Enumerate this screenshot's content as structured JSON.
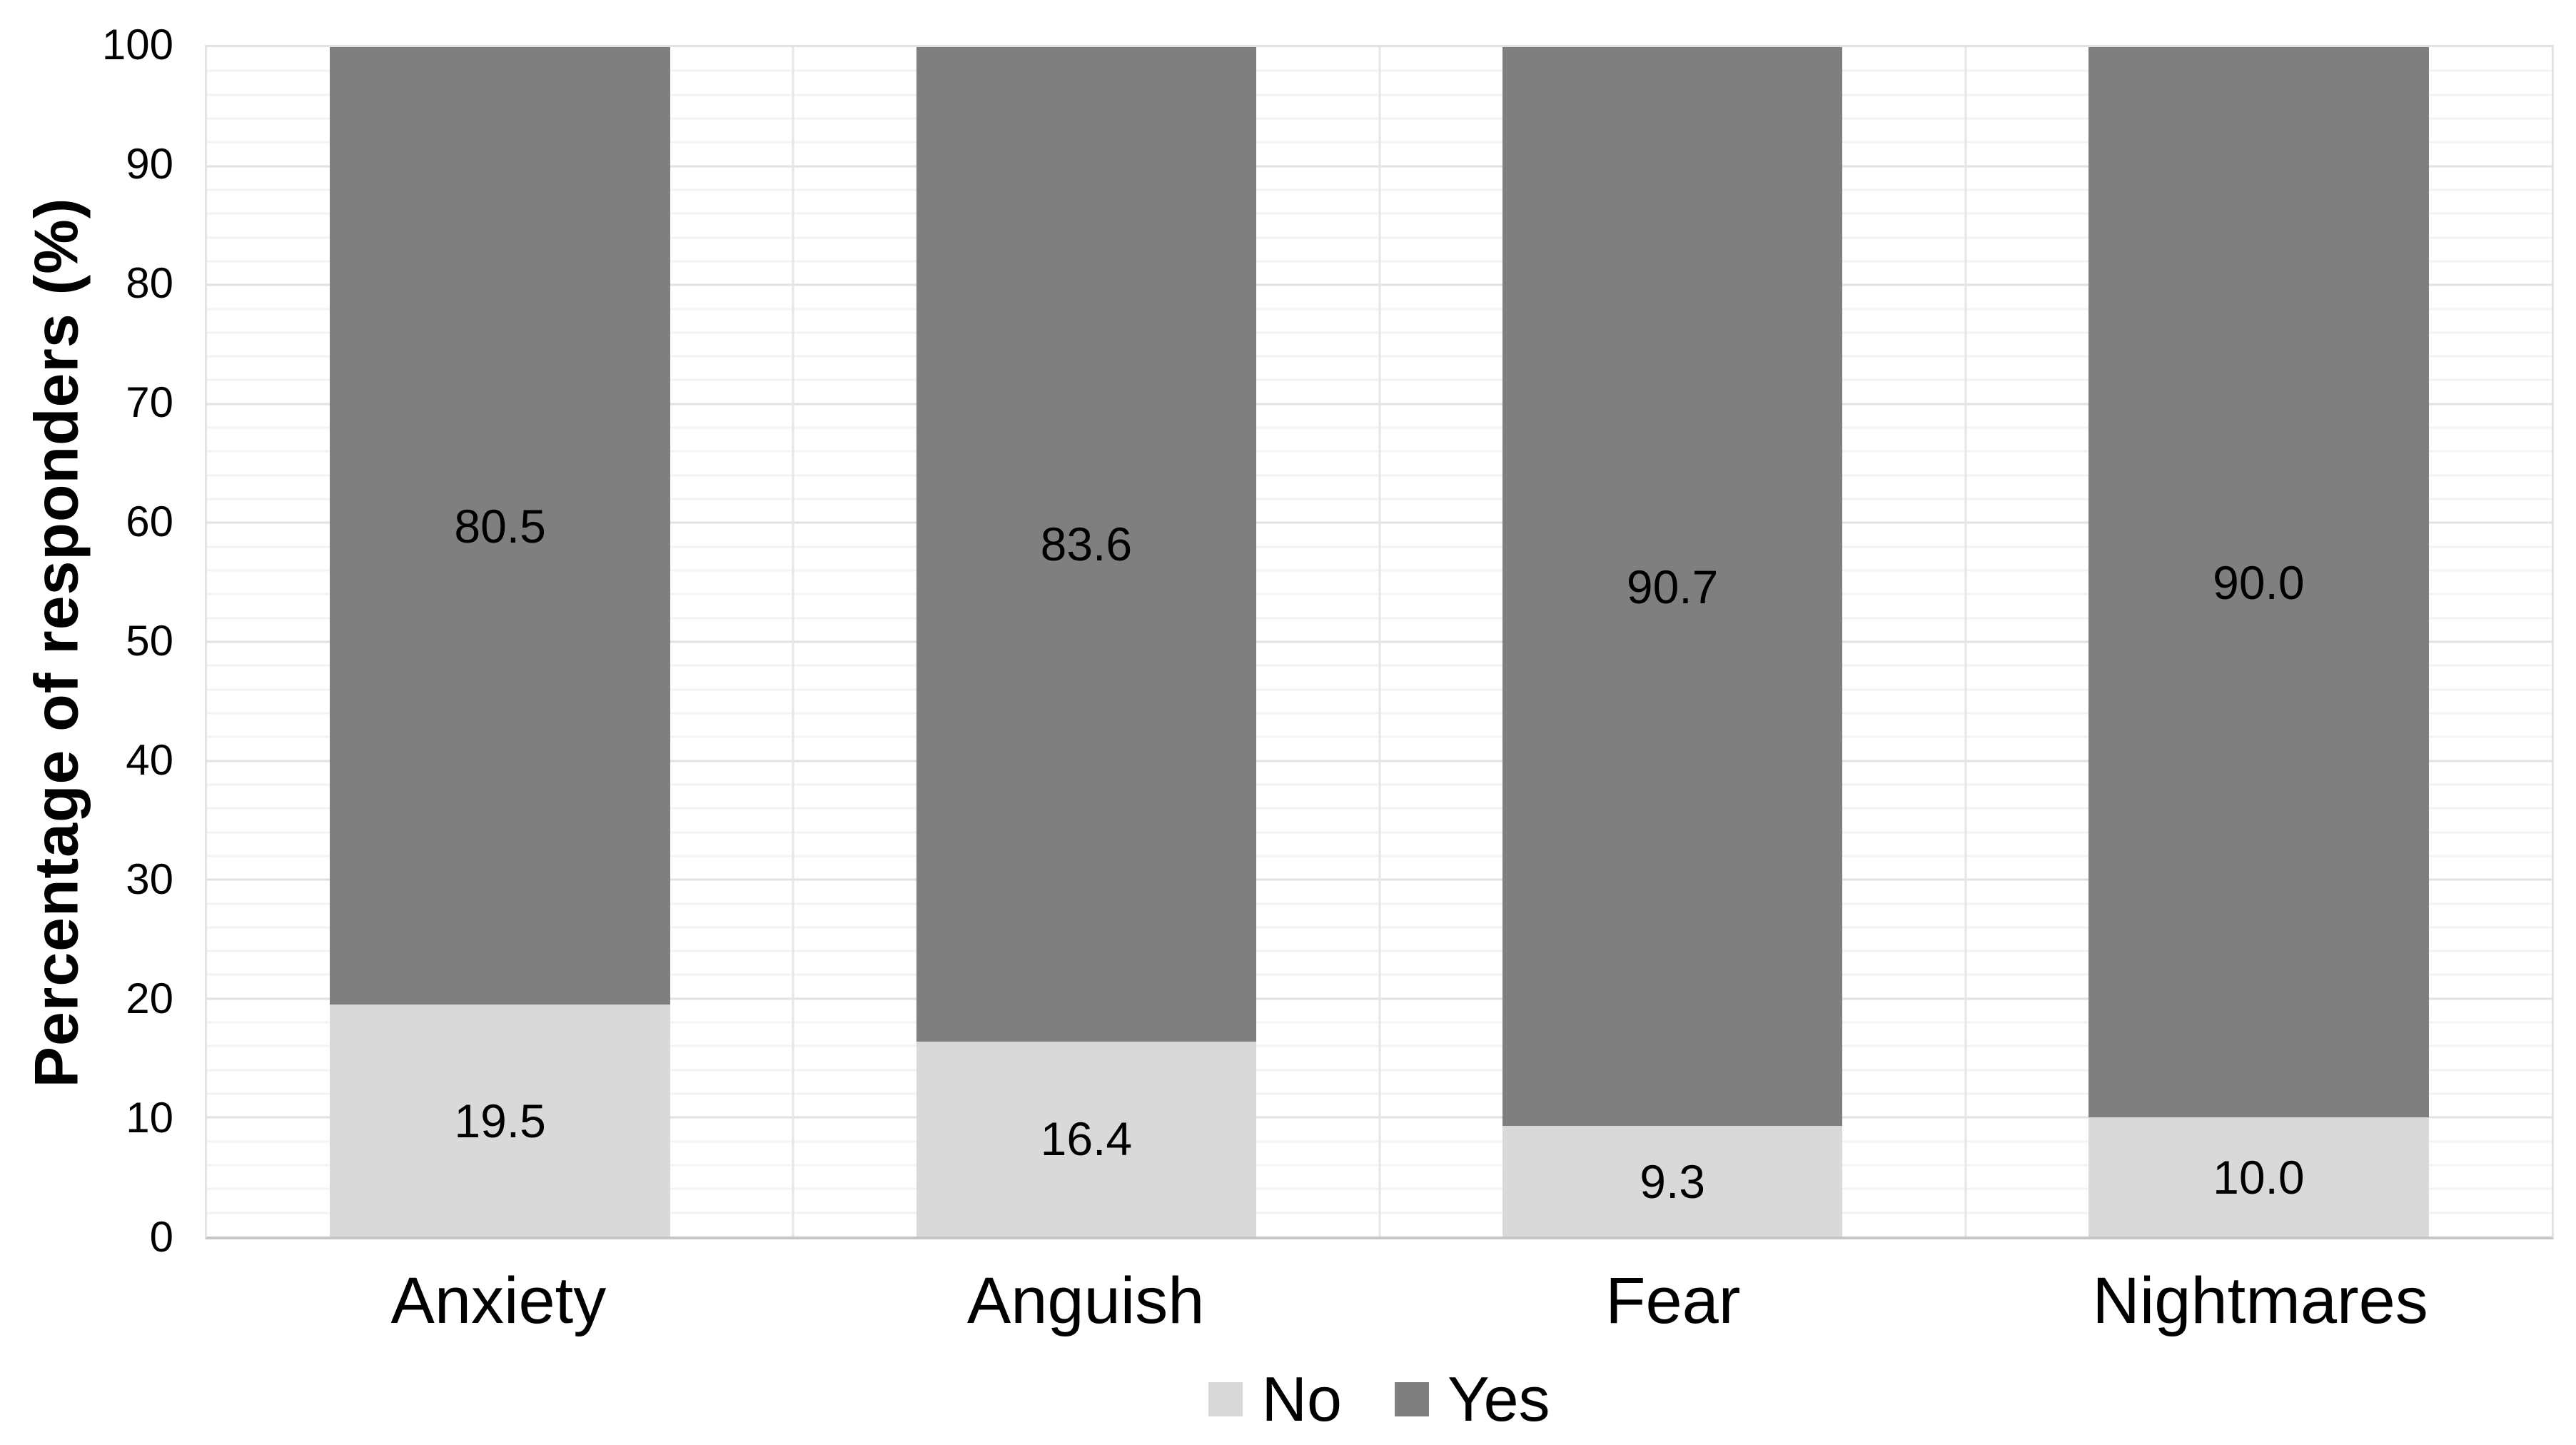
{
  "chart_data": {
    "type": "bar",
    "stacked": true,
    "title": "",
    "xlabel": "",
    "ylabel": "Percentage of responders (%)",
    "ylim": [
      0,
      100
    ],
    "yticks": [
      0,
      10,
      20,
      30,
      40,
      50,
      60,
      70,
      80,
      90,
      100
    ],
    "minor_grid_step": 2,
    "major_grid_step": 10,
    "grid": true,
    "categories": [
      "Anxiety",
      "Anguish",
      "Fear",
      "Nightmares"
    ],
    "series": [
      {
        "name": "No",
        "color": "#d9d9d9",
        "values": [
          19.5,
          16.4,
          9.3,
          10.0
        ],
        "labels": [
          "19.5",
          "16.4",
          "9.3",
          "10.0"
        ]
      },
      {
        "name": "Yes",
        "color": "#7f7f7f",
        "values": [
          80.5,
          83.6,
          90.7,
          90.0
        ],
        "labels": [
          "80.5",
          "83.6",
          "90.7",
          "90.0"
        ]
      }
    ],
    "label_color": "#000000",
    "legend": {
      "position": "bottom-center",
      "entries": [
        "No",
        "Yes"
      ]
    }
  }
}
